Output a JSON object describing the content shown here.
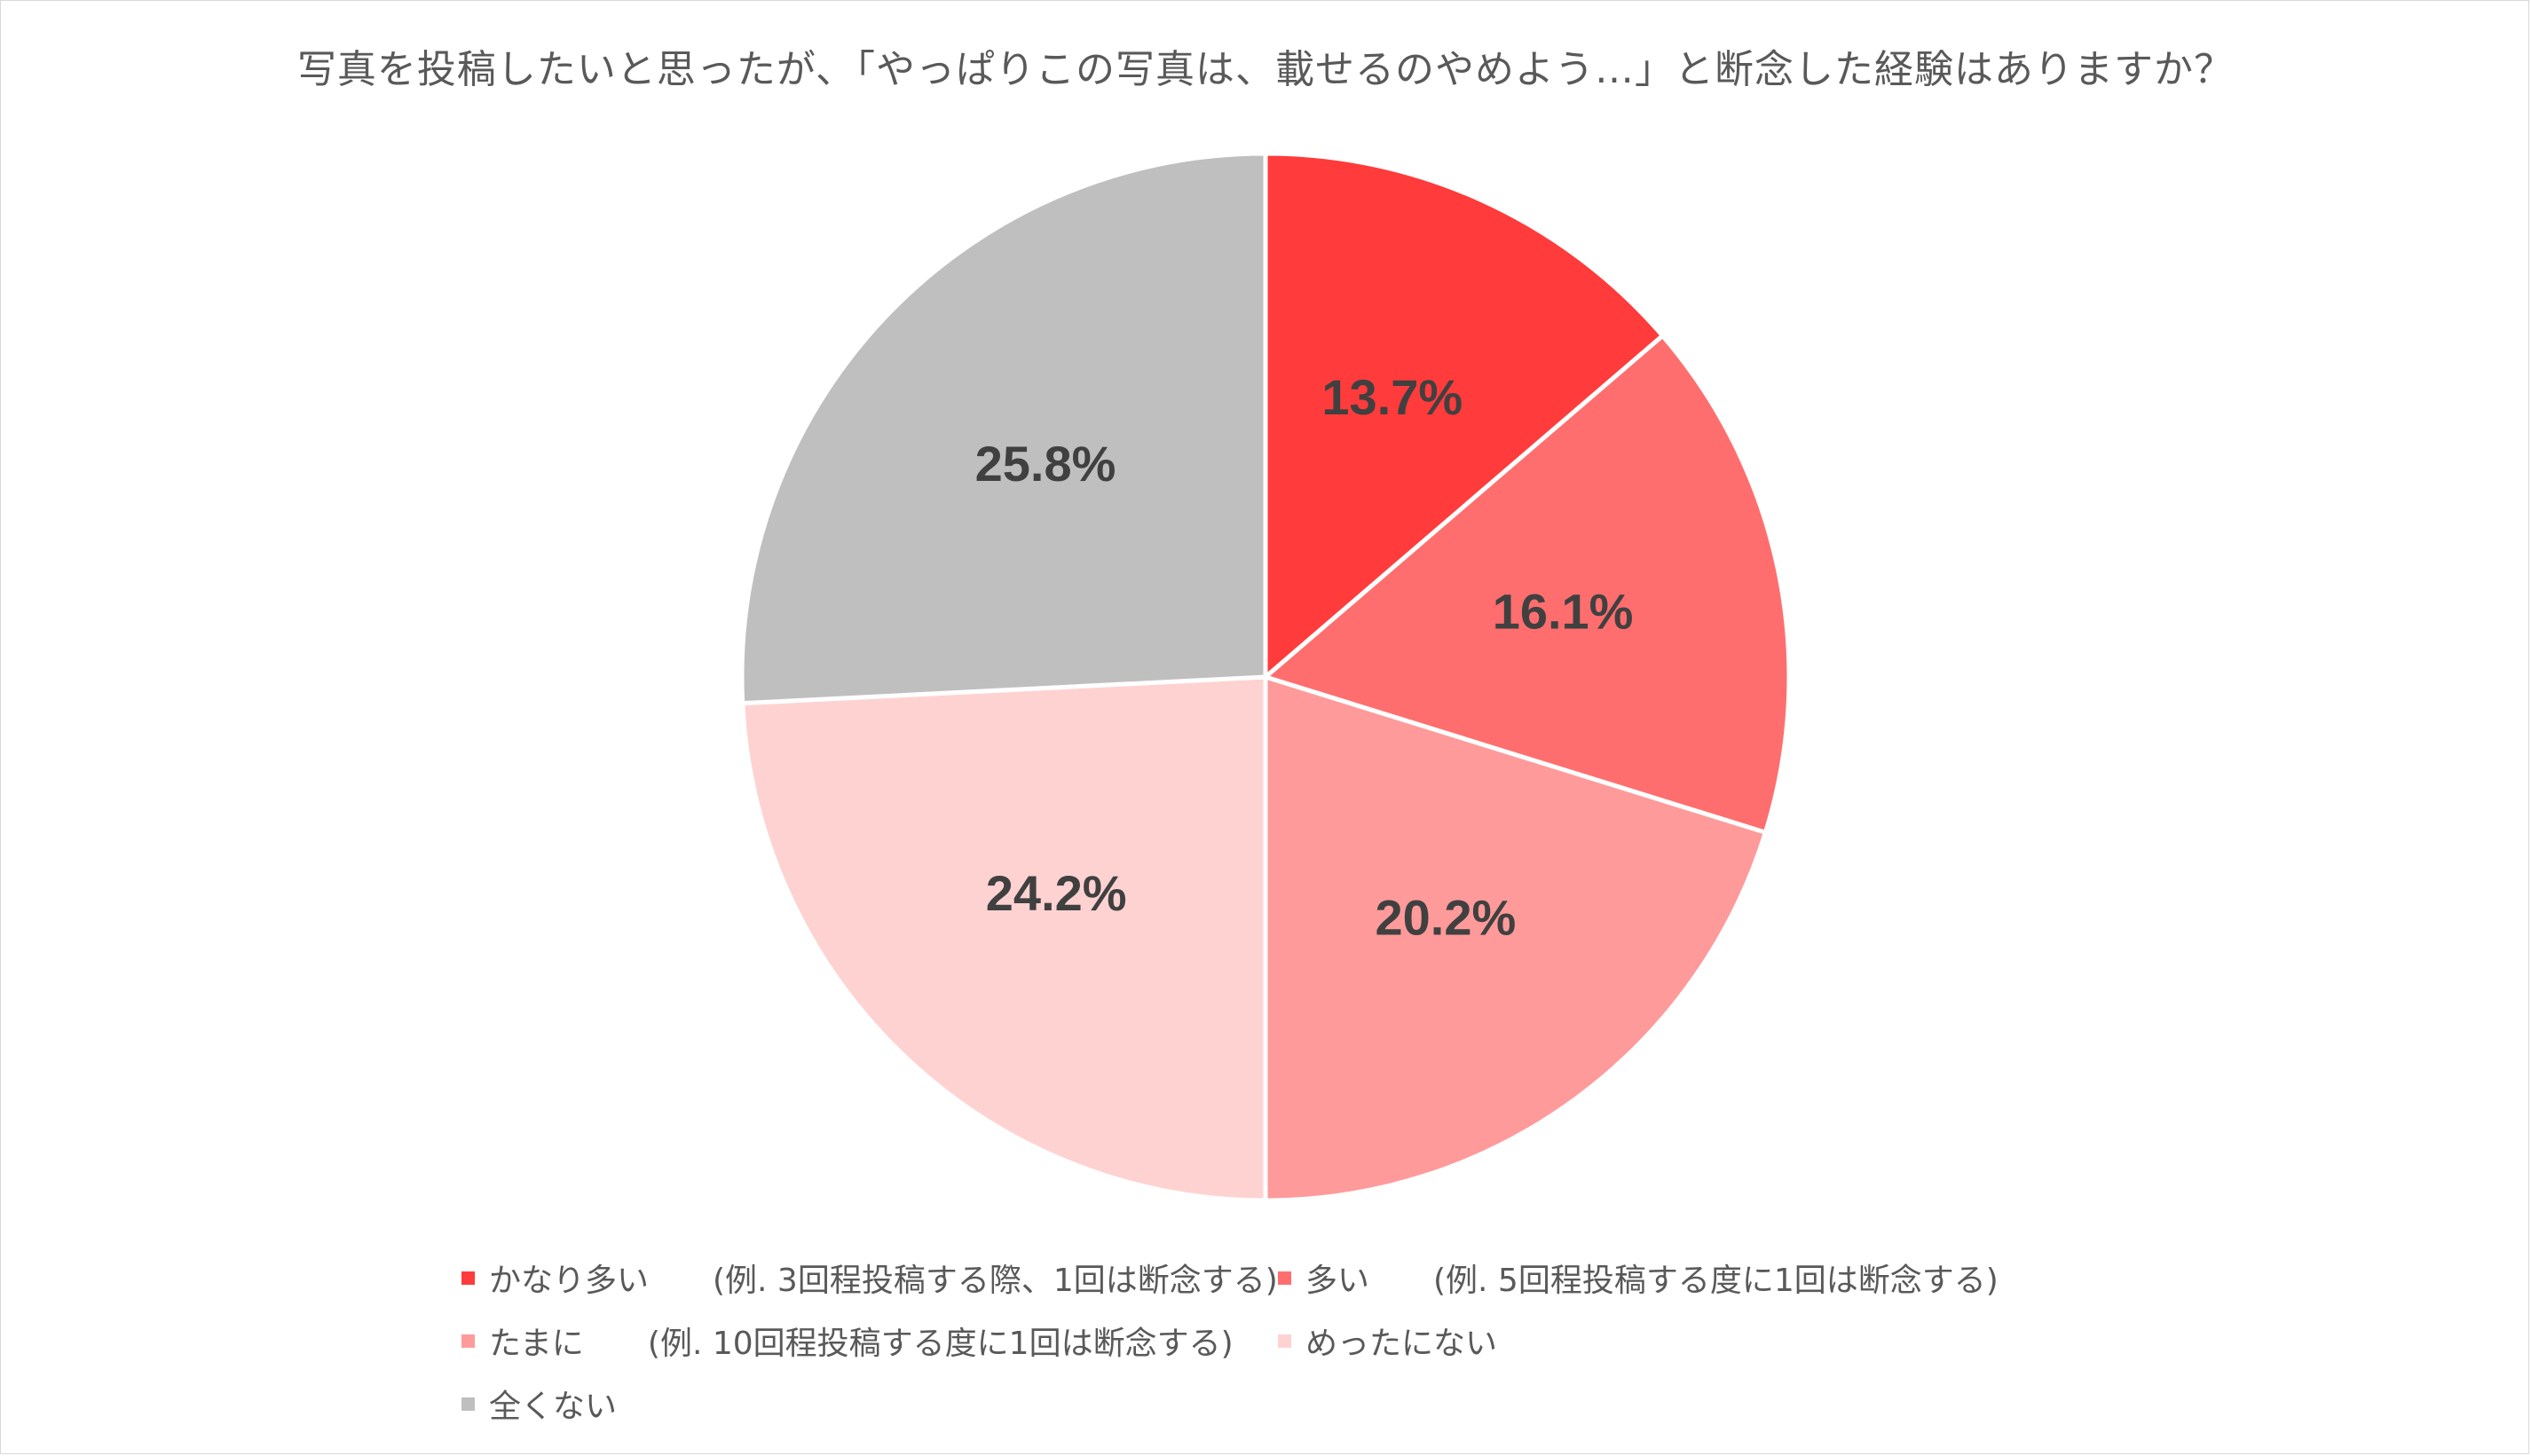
{
  "chart_data": {
    "type": "pie",
    "title": "写真を投稿したいと思ったが、「やっぱりこの写真は、載せるのやめよう…」と断念した経験はありますか？",
    "slices": [
      {
        "name": "かなり多い　　(例. 3回程投稿する際、1回は断念する)",
        "value": 13.7,
        "label": "13.7%",
        "color": "#ff3b3b"
      },
      {
        "name": "多い　　(例. 5回程投稿する度に1回は断念する)",
        "value": 16.1,
        "label": "16.1%",
        "color": "#ff6e6e"
      },
      {
        "name": "たまに　　(例. 10回程投稿する度に1回は断念する)",
        "value": 20.2,
        "label": "20.2%",
        "color": "#ff9a9a"
      },
      {
        "name": "めったにない",
        "value": 24.2,
        "label": "24.2%",
        "color": "#ffd2d2"
      },
      {
        "name": "全くない",
        "value": 25.8,
        "label": "25.8%",
        "color": "#bfbfbf"
      }
    ],
    "start_angle": "12 o'clock",
    "direction": "clockwise",
    "legend_position": "bottom"
  }
}
